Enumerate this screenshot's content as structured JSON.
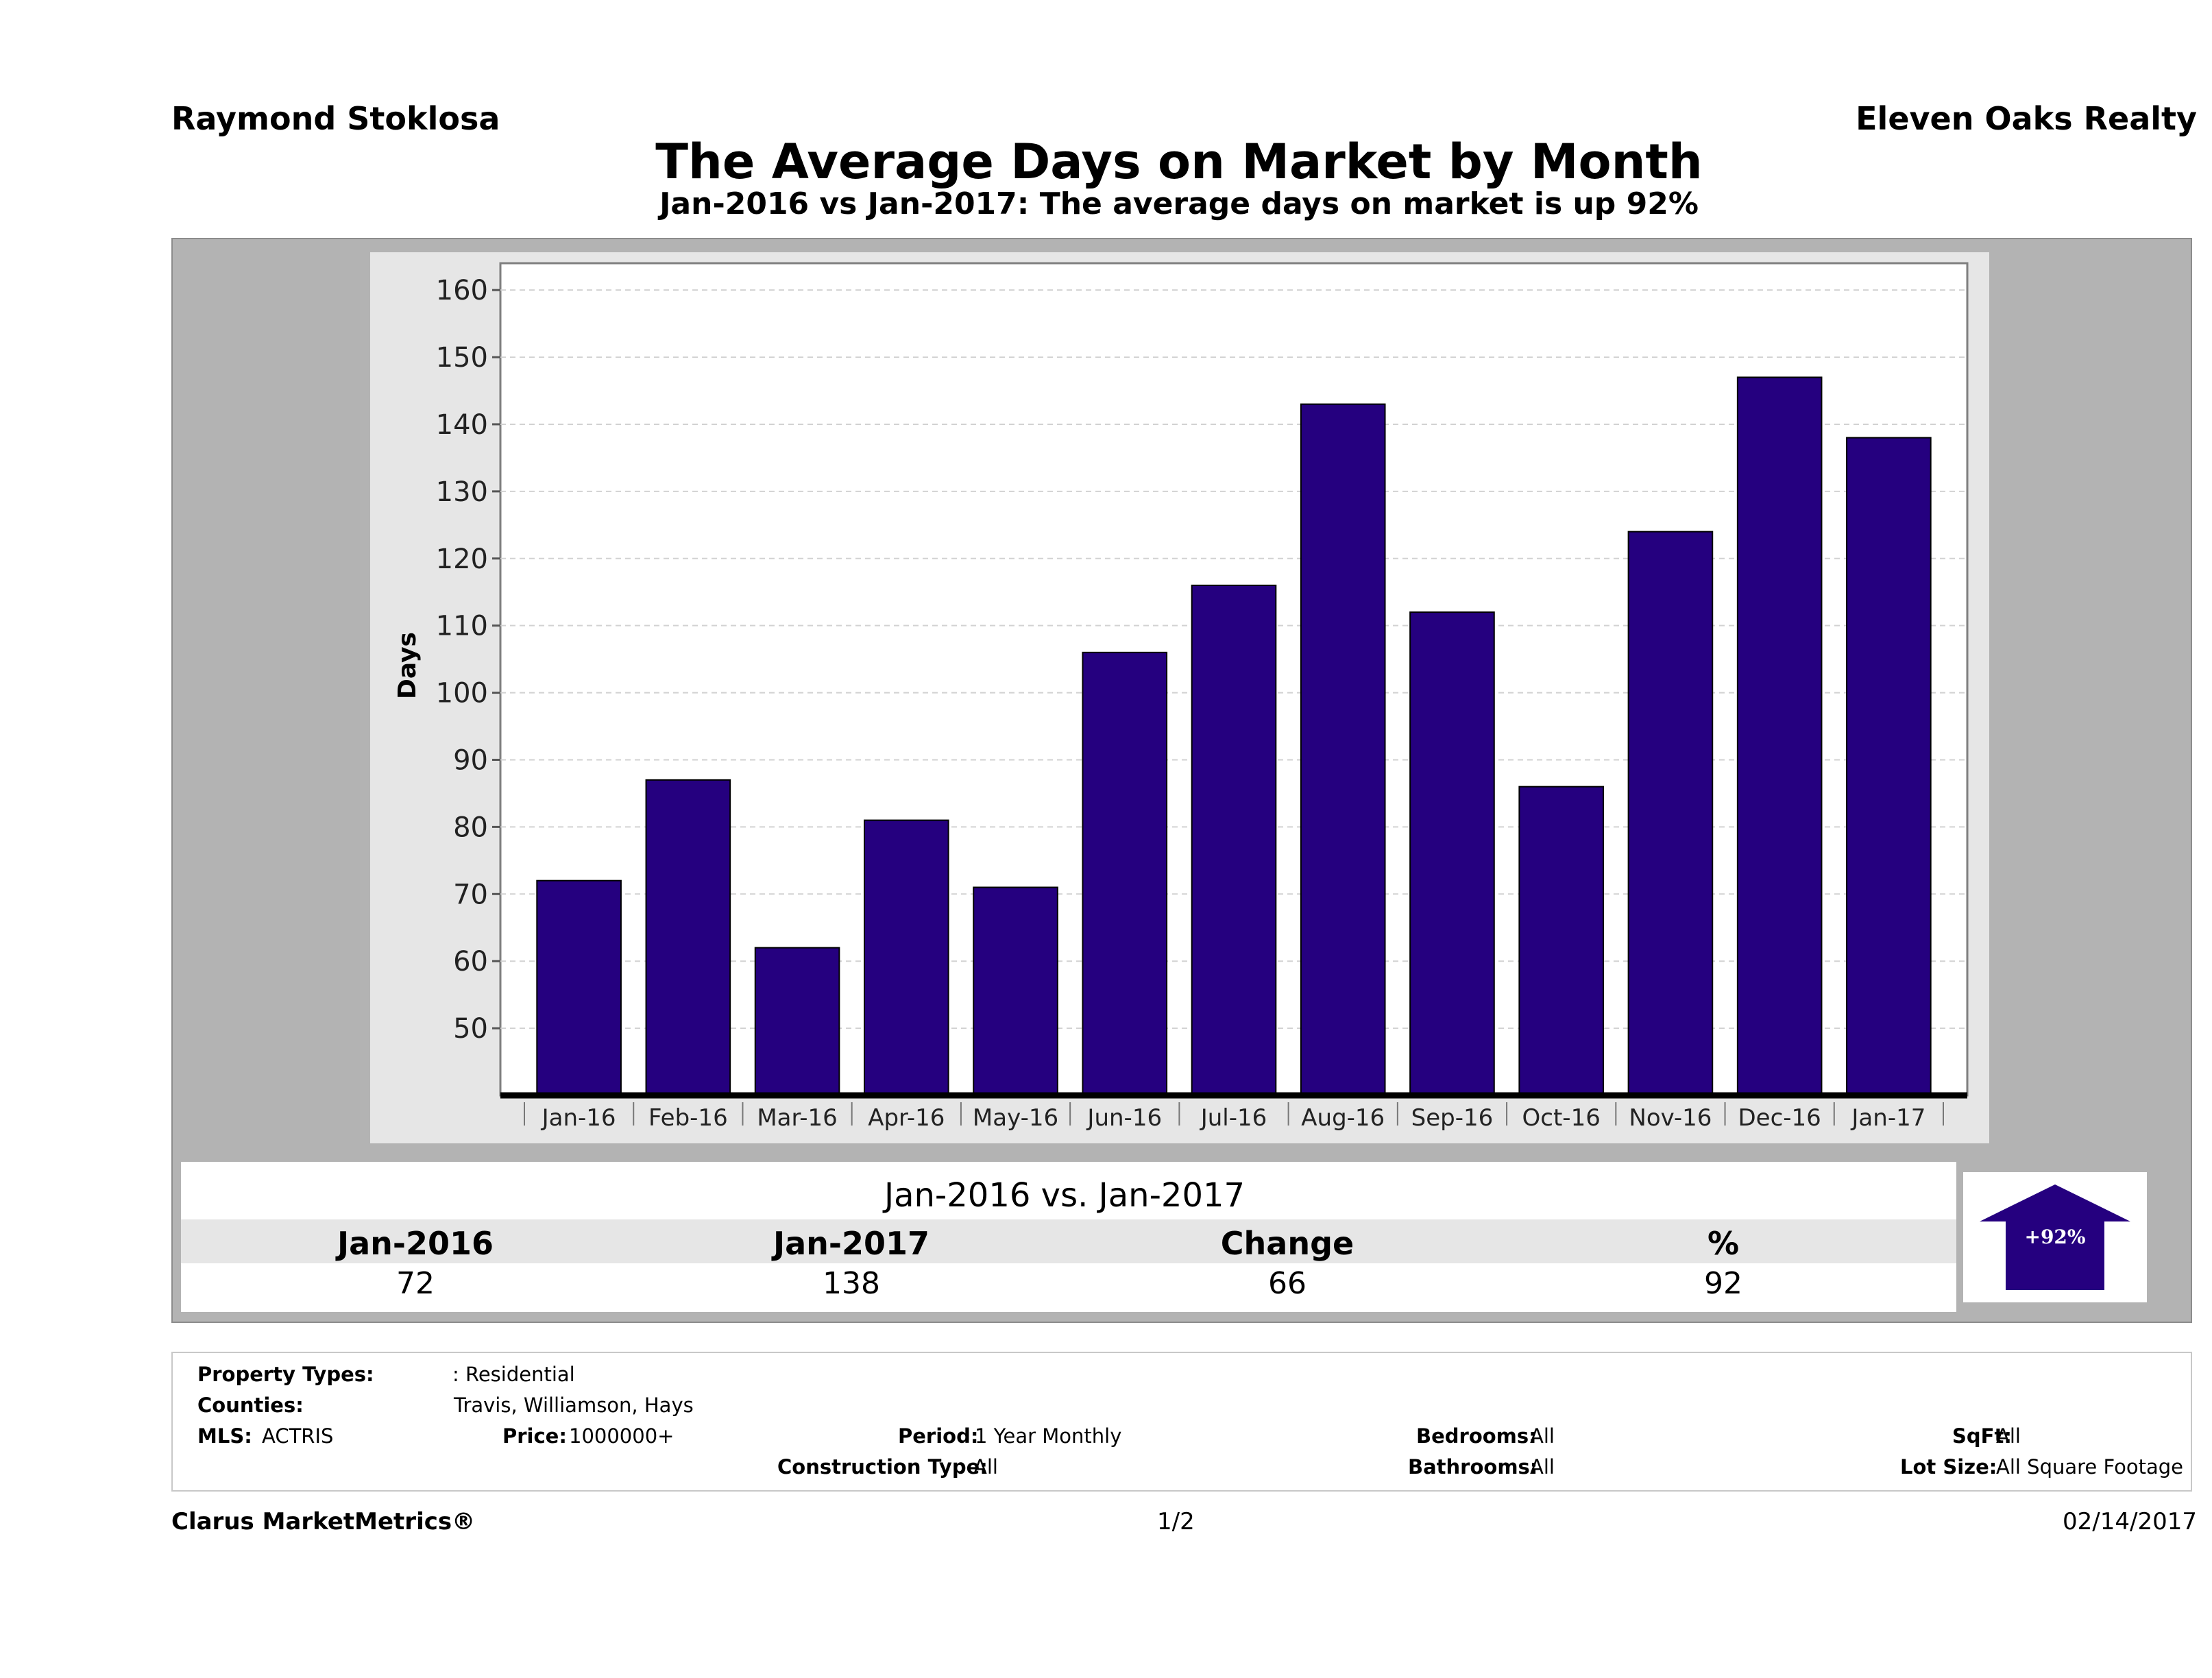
{
  "header": {
    "agent": "Raymond Stoklosa",
    "company": "Eleven Oaks Realty",
    "title": "The Average Days on Market by Month",
    "subtitle": "Jan-2016 vs Jan-2017: The average days on market is up 92%"
  },
  "chart_data": {
    "type": "bar",
    "categories": [
      "Jan-16",
      "Feb-16",
      "Mar-16",
      "Apr-16",
      "May-16",
      "Jun-16",
      "Jul-16",
      "Aug-16",
      "Sep-16",
      "Oct-16",
      "Nov-16",
      "Dec-16",
      "Jan-17"
    ],
    "values": [
      72,
      87,
      62,
      81,
      71,
      106,
      116,
      143,
      112,
      86,
      124,
      147,
      138
    ],
    "ylabel": "Days",
    "ylim": [
      40,
      164
    ],
    "yticks": [
      50,
      60,
      70,
      80,
      90,
      100,
      110,
      120,
      130,
      140,
      150,
      160
    ],
    "bar_color": "#25007f",
    "grid": true
  },
  "summary": {
    "heading": "Jan-2016 vs. Jan-2017",
    "columns": [
      "Jan-2016",
      "Jan-2017",
      "Change",
      "%"
    ],
    "values": [
      "72",
      "138",
      "66",
      "92"
    ],
    "arrow_label": "+92%",
    "arrow_direction": "up",
    "arrow_color": "#25007f"
  },
  "filters": {
    "property_types_label": "Property Types:",
    "property_types_value": ": Residential",
    "counties_label": "Counties:",
    "counties_value": "Travis, Williamson, Hays",
    "mls_label": "MLS:",
    "mls_value": "ACTRIS",
    "price_label": "Price:",
    "price_value": "1000000+",
    "period_label": "Period:",
    "period_value": "1 Year Monthly",
    "construction_label": "Construction Type:",
    "construction_value": "All",
    "bedrooms_label": "Bedrooms:",
    "bedrooms_value": "All",
    "bathrooms_label": "Bathrooms:",
    "bathrooms_value": "All",
    "sqft_label": "SqFt:",
    "sqft_value": "All",
    "lot_label": "Lot Size:",
    "lot_value": "All Square Footage"
  },
  "footer": {
    "brand": "Clarus MarketMetrics®",
    "page": "1/2",
    "date": "02/14/2017"
  }
}
